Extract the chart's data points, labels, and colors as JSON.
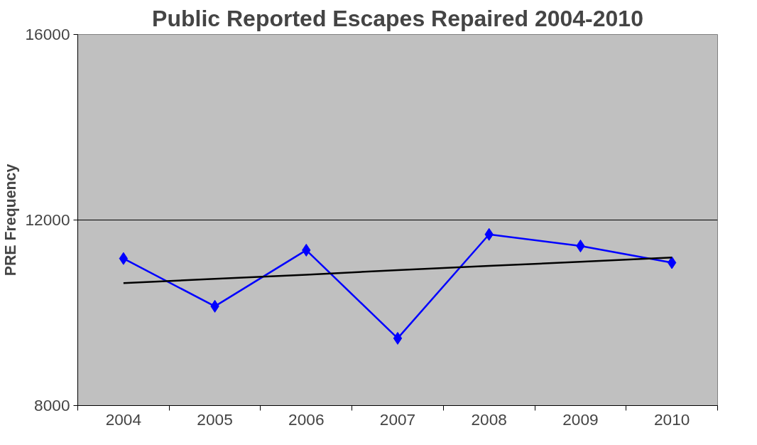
{
  "chart_data": {
    "type": "line",
    "title": "Public Reported Escapes Repaired 2004-2010",
    "ylabel": "PRE Frequency",
    "categories": [
      "2004",
      "2005",
      "2006",
      "2007",
      "2008",
      "2009",
      "2010"
    ],
    "series": [
      {
        "color": "#0000ff",
        "marker": "diamond",
        "values": [
          11170,
          10140,
          11350,
          9450,
          11690,
          11440,
          11080
        ]
      },
      {
        "type": "line",
        "color": "#000000",
        "marker": "none",
        "values": [
          10640,
          10730,
          10820,
          10920,
          11010,
          11100,
          11190
        ]
      }
    ],
    "ylim": [
      8000,
      16000
    ],
    "yticks": [
      8000,
      12000,
      16000
    ],
    "grid": "y"
  }
}
